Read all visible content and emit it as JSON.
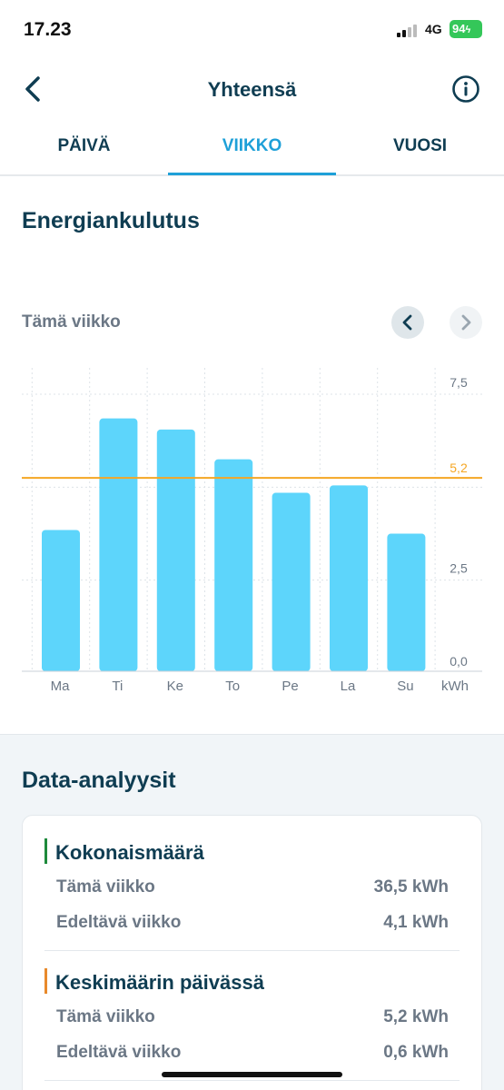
{
  "status_bar": {
    "time": "17.23",
    "network": "4G",
    "battery": "94"
  },
  "header": {
    "title": "Yhteensä"
  },
  "tabs": [
    {
      "label": "PÄIVÄ",
      "active": false
    },
    {
      "label": "VIIKKO",
      "active": true
    },
    {
      "label": "VUOSI",
      "active": false
    }
  ],
  "energy": {
    "title": "Energiankulutus",
    "period_label": "Tämä viikko"
  },
  "chart_data": {
    "type": "bar",
    "categories": [
      "Ma",
      "Ti",
      "Ke",
      "To",
      "Pe",
      "La",
      "Su"
    ],
    "values": [
      3.8,
      6.8,
      6.5,
      5.7,
      4.8,
      5.0,
      3.7
    ],
    "unit": "kWh",
    "y_ticks": [
      "7,5",
      "2,5",
      "0,0"
    ],
    "ylim": [
      0,
      8
    ],
    "average": {
      "value": 5.2,
      "label": "5,2",
      "color": "#f5a623"
    },
    "bar_color": "#5dd5fb",
    "grid": true
  },
  "analysis": {
    "title": "Data-analyysit",
    "groups": [
      {
        "title": "Kokonaismäärä",
        "accent": "#1e8a3c",
        "rows": [
          {
            "label": "Tämä viikko",
            "value": "36,5 kWh"
          },
          {
            "label": "Edeltävä viikko",
            "value": "4,1 kWh"
          }
        ]
      },
      {
        "title": "Keskimäärin päivässä",
        "accent": "#e8892b",
        "rows": [
          {
            "label": "Tämä viikko",
            "value": "5,2 kWh"
          },
          {
            "label": "Edeltävä viikko",
            "value": "0,6 kWh"
          }
        ]
      }
    ]
  }
}
